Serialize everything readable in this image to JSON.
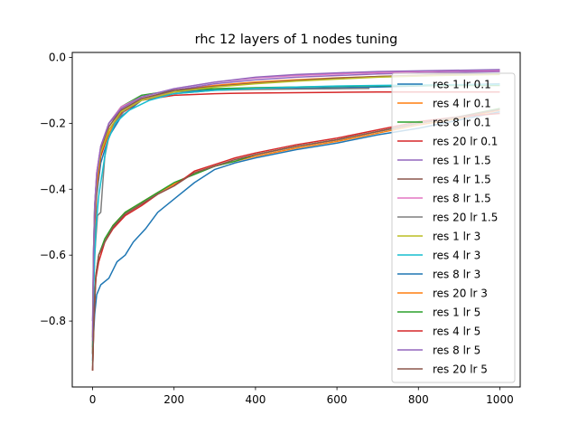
{
  "chart_data": {
    "type": "line",
    "title": "rhc 12 layers of 1 nodes tuning",
    "xlabel": "",
    "ylabel": "",
    "xlim": [
      -50,
      1050
    ],
    "ylim": [
      -1.0,
      0.015
    ],
    "xticks": [
      0,
      200,
      400,
      600,
      800,
      1000
    ],
    "yticks": [
      0.0,
      -0.2,
      -0.4,
      -0.6,
      -0.8
    ],
    "xtick_labels": [
      "0",
      "200",
      "400",
      "600",
      "800",
      "1000"
    ],
    "ytick_labels": [
      "0.0",
      "−0.2",
      "−0.4",
      "−0.6",
      "−0.8"
    ],
    "grid": false,
    "legend_position": "right",
    "series": [
      {
        "name": "res 1 lr 0.1",
        "color": "#1f77b4",
        "points": [
          [
            0,
            -0.92
          ],
          [
            2,
            -0.7
          ],
          [
            5,
            -0.55
          ],
          [
            10,
            -0.42
          ],
          [
            20,
            -0.32
          ],
          [
            40,
            -0.24
          ],
          [
            70,
            -0.18
          ],
          [
            120,
            -0.13
          ],
          [
            200,
            -0.105
          ],
          [
            300,
            -0.098
          ],
          [
            400,
            -0.096
          ],
          [
            500,
            -0.094
          ],
          [
            600,
            -0.092
          ],
          [
            700,
            -0.09
          ],
          [
            850,
            -0.085
          ],
          [
            1000,
            -0.08
          ]
        ]
      },
      {
        "name": "res 4 lr 0.1",
        "color": "#ff7f0e",
        "points": [
          [
            0,
            -0.9
          ],
          [
            2,
            -0.68
          ],
          [
            5,
            -0.52
          ],
          [
            10,
            -0.4
          ],
          [
            20,
            -0.3
          ],
          [
            40,
            -0.23
          ],
          [
            70,
            -0.17
          ],
          [
            120,
            -0.13
          ],
          [
            200,
            -0.1
          ],
          [
            300,
            -0.085
          ],
          [
            400,
            -0.075
          ],
          [
            500,
            -0.068
          ],
          [
            600,
            -0.062
          ],
          [
            700,
            -0.058
          ],
          [
            850,
            -0.052
          ],
          [
            1000,
            -0.05
          ]
        ]
      },
      {
        "name": "res 8 lr 0.1",
        "color": "#2ca02c",
        "points": [
          [
            0,
            -0.88
          ],
          [
            2,
            -0.6
          ],
          [
            5,
            -0.45
          ],
          [
            10,
            -0.36
          ],
          [
            20,
            -0.28
          ],
          [
            40,
            -0.2
          ],
          [
            70,
            -0.15
          ],
          [
            120,
            -0.115
          ],
          [
            200,
            -0.1
          ],
          [
            300,
            -0.095
          ],
          [
            400,
            -0.092
          ],
          [
            500,
            -0.09
          ],
          [
            600,
            -0.088
          ],
          [
            700,
            -0.086
          ],
          [
            850,
            -0.085
          ],
          [
            1000,
            -0.085
          ]
        ]
      },
      {
        "name": "res 20 lr 0.1",
        "color": "#d62728",
        "points": [
          [
            0,
            -0.9
          ],
          [
            2,
            -0.65
          ],
          [
            5,
            -0.5
          ],
          [
            10,
            -0.38
          ],
          [
            20,
            -0.3
          ],
          [
            40,
            -0.22
          ],
          [
            70,
            -0.17
          ],
          [
            120,
            -0.13
          ],
          [
            200,
            -0.115
          ],
          [
            300,
            -0.11
          ],
          [
            400,
            -0.108
          ],
          [
            500,
            -0.107
          ],
          [
            600,
            -0.106
          ],
          [
            700,
            -0.105
          ],
          [
            850,
            -0.105
          ],
          [
            1000,
            -0.105
          ]
        ]
      },
      {
        "name": "res 1 lr 1.5",
        "color": "#9467bd",
        "points": [
          [
            0,
            -0.8
          ],
          [
            2,
            -0.6
          ],
          [
            5,
            -0.45
          ],
          [
            10,
            -0.35
          ],
          [
            20,
            -0.27
          ],
          [
            40,
            -0.2
          ],
          [
            70,
            -0.16
          ],
          [
            120,
            -0.13
          ],
          [
            200,
            -0.1
          ],
          [
            300,
            -0.08
          ],
          [
            400,
            -0.068
          ],
          [
            500,
            -0.06
          ],
          [
            600,
            -0.055
          ],
          [
            700,
            -0.05
          ],
          [
            850,
            -0.046
          ],
          [
            1000,
            -0.043
          ]
        ]
      },
      {
        "name": "res 4 lr 1.5",
        "color": "#8c564b",
        "points": [
          [
            0,
            -0.85
          ],
          [
            2,
            -0.62
          ],
          [
            5,
            -0.48
          ],
          [
            10,
            -0.37
          ],
          [
            20,
            -0.28
          ],
          [
            40,
            -0.21
          ],
          [
            70,
            -0.16
          ],
          [
            120,
            -0.125
          ],
          [
            200,
            -0.1
          ],
          [
            300,
            -0.088
          ],
          [
            400,
            -0.078
          ],
          [
            500,
            -0.07
          ],
          [
            600,
            -0.063
          ],
          [
            700,
            -0.058
          ],
          [
            850,
            -0.053
          ],
          [
            1000,
            -0.05
          ]
        ]
      },
      {
        "name": "res 8 lr 1.5",
        "color": "#e377c2",
        "points": [
          [
            0,
            -0.82
          ],
          [
            2,
            -0.6
          ],
          [
            5,
            -0.46
          ],
          [
            10,
            -0.35
          ],
          [
            20,
            -0.27
          ],
          [
            40,
            -0.2
          ],
          [
            70,
            -0.15
          ],
          [
            120,
            -0.12
          ],
          [
            200,
            -0.095
          ],
          [
            300,
            -0.075
          ],
          [
            400,
            -0.062
          ],
          [
            500,
            -0.055
          ],
          [
            600,
            -0.05
          ],
          [
            700,
            -0.046
          ],
          [
            850,
            -0.042
          ],
          [
            1000,
            -0.04
          ]
        ]
      },
      {
        "name": "res 20 lr 1.5",
        "color": "#7f7f7f",
        "points": [
          [
            0,
            -0.8
          ],
          [
            5,
            -0.6
          ],
          [
            12,
            -0.48
          ],
          [
            20,
            -0.47
          ],
          [
            25,
            -0.38
          ],
          [
            30,
            -0.3
          ],
          [
            40,
            -0.24
          ],
          [
            60,
            -0.19
          ],
          [
            80,
            -0.16
          ],
          [
            120,
            -0.13
          ],
          [
            200,
            -0.11
          ],
          [
            300,
            -0.1
          ],
          [
            400,
            -0.097
          ],
          [
            500,
            -0.096
          ],
          [
            600,
            -0.095
          ],
          [
            680,
            -0.094
          ]
        ]
      },
      {
        "name": "res 1 lr 3",
        "color": "#bcbd22",
        "points": [
          [
            0,
            -0.85
          ],
          [
            2,
            -0.63
          ],
          [
            5,
            -0.48
          ],
          [
            10,
            -0.37
          ],
          [
            20,
            -0.29
          ],
          [
            40,
            -0.22
          ],
          [
            70,
            -0.165
          ],
          [
            120,
            -0.13
          ],
          [
            200,
            -0.105
          ],
          [
            300,
            -0.09
          ],
          [
            400,
            -0.08
          ],
          [
            500,
            -0.072
          ],
          [
            600,
            -0.066
          ],
          [
            700,
            -0.06
          ],
          [
            850,
            -0.055
          ],
          [
            1000,
            -0.052
          ]
        ]
      },
      {
        "name": "res 4 lr 3",
        "color": "#17becf",
        "points": [
          [
            0,
            -0.9
          ],
          [
            3,
            -0.68
          ],
          [
            8,
            -0.52
          ],
          [
            15,
            -0.42
          ],
          [
            25,
            -0.34
          ],
          [
            35,
            -0.26
          ],
          [
            55,
            -0.2
          ],
          [
            90,
            -0.16
          ],
          [
            140,
            -0.13
          ],
          [
            200,
            -0.11
          ],
          [
            300,
            -0.1
          ],
          [
            400,
            -0.094
          ],
          [
            500,
            -0.09
          ],
          [
            600,
            -0.087
          ],
          [
            700,
            -0.085
          ],
          [
            850,
            -0.083
          ],
          [
            1000,
            -0.082
          ]
        ]
      },
      {
        "name": "res 8 lr 3",
        "color": "#1f77b4",
        "points": [
          [
            0,
            -0.95
          ],
          [
            2,
            -0.85
          ],
          [
            5,
            -0.78
          ],
          [
            10,
            -0.72
          ],
          [
            20,
            -0.69
          ],
          [
            40,
            -0.67
          ],
          [
            60,
            -0.62
          ],
          [
            80,
            -0.6
          ],
          [
            100,
            -0.56
          ],
          [
            130,
            -0.52
          ],
          [
            160,
            -0.47
          ],
          [
            200,
            -0.43
          ],
          [
            250,
            -0.38
          ],
          [
            300,
            -0.34
          ],
          [
            350,
            -0.32
          ],
          [
            400,
            -0.305
          ],
          [
            500,
            -0.28
          ],
          [
            600,
            -0.26
          ],
          [
            700,
            -0.235
          ],
          [
            800,
            -0.215
          ],
          [
            900,
            -0.19
          ],
          [
            1000,
            -0.165
          ]
        ]
      },
      {
        "name": "res 20 lr 3",
        "color": "#ff7f0e",
        "points": [
          [
            0,
            -0.95
          ],
          [
            3,
            -0.8
          ],
          [
            8,
            -0.67
          ],
          [
            15,
            -0.6
          ],
          [
            30,
            -0.56
          ],
          [
            50,
            -0.51
          ],
          [
            80,
            -0.47
          ],
          [
            120,
            -0.44
          ],
          [
            160,
            -0.41
          ],
          [
            200,
            -0.385
          ],
          [
            250,
            -0.35
          ],
          [
            300,
            -0.33
          ],
          [
            350,
            -0.315
          ],
          [
            400,
            -0.3
          ],
          [
            500,
            -0.275
          ],
          [
            600,
            -0.255
          ],
          [
            700,
            -0.23
          ],
          [
            800,
            -0.205
          ],
          [
            900,
            -0.185
          ],
          [
            1000,
            -0.16
          ]
        ]
      },
      {
        "name": "res 1 lr 5",
        "color": "#2ca02c",
        "points": [
          [
            0,
            -0.93
          ],
          [
            3,
            -0.78
          ],
          [
            8,
            -0.66
          ],
          [
            15,
            -0.6
          ],
          [
            30,
            -0.55
          ],
          [
            50,
            -0.51
          ],
          [
            80,
            -0.47
          ],
          [
            120,
            -0.44
          ],
          [
            160,
            -0.41
          ],
          [
            200,
            -0.38
          ],
          [
            250,
            -0.355
          ],
          [
            300,
            -0.33
          ],
          [
            350,
            -0.315
          ],
          [
            400,
            -0.295
          ],
          [
            500,
            -0.27
          ],
          [
            600,
            -0.25
          ],
          [
            700,
            -0.225
          ],
          [
            800,
            -0.2
          ],
          [
            900,
            -0.18
          ],
          [
            1000,
            -0.155
          ]
        ]
      },
      {
        "name": "res 4 lr 5",
        "color": "#d62728",
        "points": [
          [
            0,
            -0.95
          ],
          [
            3,
            -0.79
          ],
          [
            8,
            -0.67
          ],
          [
            15,
            -0.62
          ],
          [
            30,
            -0.56
          ],
          [
            50,
            -0.52
          ],
          [
            80,
            -0.48
          ],
          [
            120,
            -0.45
          ],
          [
            160,
            -0.415
          ],
          [
            200,
            -0.39
          ],
          [
            250,
            -0.345
          ],
          [
            300,
            -0.325
          ],
          [
            350,
            -0.305
          ],
          [
            400,
            -0.29
          ],
          [
            500,
            -0.265
          ],
          [
            600,
            -0.245
          ],
          [
            700,
            -0.22
          ],
          [
            800,
            -0.195
          ],
          [
            900,
            -0.18
          ],
          [
            1000,
            -0.17
          ]
        ]
      },
      {
        "name": "res 8 lr 5",
        "color": "#9467bd",
        "points": [
          [
            0,
            -0.86
          ],
          [
            2,
            -0.62
          ],
          [
            5,
            -0.47
          ],
          [
            10,
            -0.36
          ],
          [
            20,
            -0.27
          ],
          [
            40,
            -0.2
          ],
          [
            70,
            -0.155
          ],
          [
            120,
            -0.12
          ],
          [
            200,
            -0.095
          ],
          [
            300,
            -0.075
          ],
          [
            400,
            -0.06
          ],
          [
            500,
            -0.052
          ],
          [
            600,
            -0.047
          ],
          [
            700,
            -0.043
          ],
          [
            850,
            -0.04
          ],
          [
            1000,
            -0.037
          ]
        ]
      },
      {
        "name": "res 20 lr 5",
        "color": "#8c564b",
        "points": [
          [
            0,
            -0.95
          ],
          [
            3,
            -0.8
          ],
          [
            8,
            -0.66
          ],
          [
            15,
            -0.6
          ],
          [
            30,
            -0.56
          ],
          [
            50,
            -0.515
          ],
          [
            80,
            -0.475
          ],
          [
            120,
            -0.445
          ],
          [
            160,
            -0.415
          ],
          [
            200,
            -0.39
          ],
          [
            250,
            -0.35
          ],
          [
            300,
            -0.33
          ],
          [
            350,
            -0.31
          ],
          [
            400,
            -0.295
          ],
          [
            500,
            -0.27
          ],
          [
            600,
            -0.25
          ],
          [
            700,
            -0.225
          ],
          [
            800,
            -0.2
          ],
          [
            900,
            -0.18
          ],
          [
            1000,
            -0.158
          ]
        ]
      }
    ]
  }
}
